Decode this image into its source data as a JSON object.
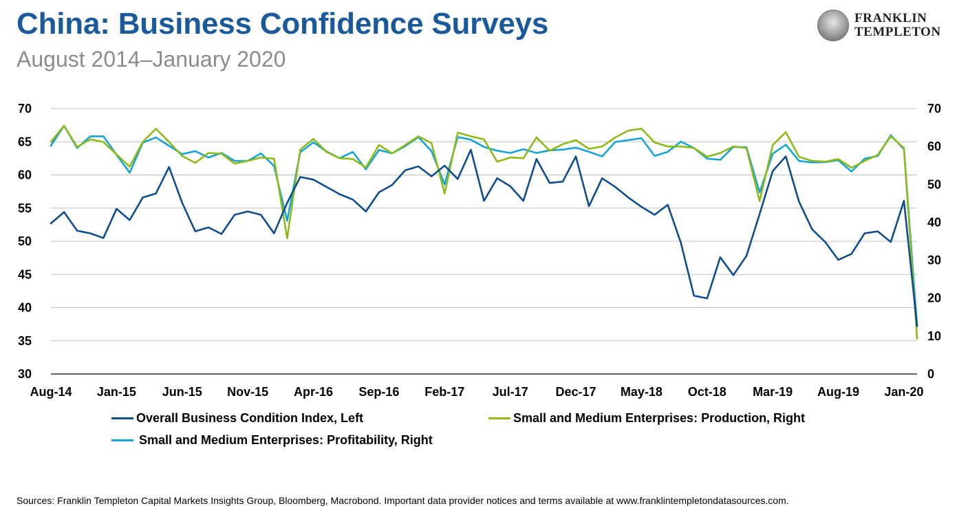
{
  "header": {
    "title": "China: Business Confidence Surveys",
    "subtitle": "August 2014–January 2020"
  },
  "logo": {
    "line1": "FRANKLIN",
    "line2": "TEMPLETON"
  },
  "footer": {
    "source": "Sources: Franklin Templeton Capital Markets Insights Group, Bloomberg, Macrobond. Important data provider notices and terms available at www.franklintempletondatasources.com."
  },
  "colors": {
    "title": "#1a5a9a",
    "subtitle": "#8c8c8c",
    "grid": "#bfbfbf"
  },
  "chart_data": {
    "type": "line",
    "left_axis": {
      "ylim": [
        30,
        70
      ],
      "ticks": [
        "30",
        "35",
        "40",
        "45",
        "50",
        "55",
        "60",
        "65",
        "70"
      ]
    },
    "right_axis": {
      "ylim": [
        0,
        70
      ],
      "ticks": [
        "0",
        "10",
        "20",
        "30",
        "40",
        "50",
        "60",
        "70"
      ]
    },
    "x_ticks": [
      {
        "label": "Aug-14",
        "index": 0
      },
      {
        "label": "Jan-15",
        "index": 5
      },
      {
        "label": "Jun-15",
        "index": 10
      },
      {
        "label": "Nov-15",
        "index": 15
      },
      {
        "label": "Apr-16",
        "index": 20
      },
      {
        "label": "Sep-16",
        "index": 25
      },
      {
        "label": "Feb-17",
        "index": 30
      },
      {
        "label": "Jul-17",
        "index": 35
      },
      {
        "label": "Dec-17",
        "index": 40
      },
      {
        "label": "May-18",
        "index": 45
      },
      {
        "label": "Oct-18",
        "index": 50
      },
      {
        "label": "Mar-19",
        "index": 55
      },
      {
        "label": "Aug-19",
        "index": 60
      },
      {
        "label": "Jan-20",
        "index": 65
      }
    ],
    "grid": true,
    "legend_position": "bottom",
    "series": [
      {
        "name": "Overall Business Condition Index, Left",
        "axis": "left",
        "color": "#0e4c8c",
        "values": [
          52.7,
          54.4,
          51.6,
          51.2,
          50.5,
          54.9,
          53.2,
          56.6,
          57.2,
          61.2,
          55.8,
          51.5,
          52.1,
          51.1,
          54.0,
          54.5,
          54.0,
          51.2,
          55.8,
          59.7,
          59.3,
          58.2,
          57.1,
          56.3,
          54.5,
          57.4,
          58.5,
          60.7,
          61.3,
          59.8,
          61.4,
          59.4,
          63.8,
          56.1,
          59.5,
          58.3,
          56.1,
          62.4,
          58.8,
          59.0,
          62.8,
          55.3,
          59.5,
          58.2,
          56.6,
          55.2,
          54.0,
          55.5,
          49.8,
          41.8,
          41.4,
          47.6,
          44.9,
          47.8,
          54.1,
          60.6,
          62.8,
          56.0,
          51.8,
          49.9,
          47.2,
          48.1,
          51.2,
          51.5,
          49.9,
          56.1,
          37.2
        ]
      },
      {
        "name": "Small and Medium Enterprises: Production, Right",
        "axis": "right",
        "color": "#8cba1a",
        "values": [
          61.2,
          65.5,
          59.9,
          61.9,
          61.2,
          57.9,
          54.7,
          61.2,
          64.7,
          61.2,
          57.5,
          55.7,
          58.3,
          58.1,
          55.5,
          56.2,
          57.1,
          56.8,
          35.8,
          59.2,
          62.0,
          58.6,
          56.9,
          56.7,
          54.5,
          60.4,
          58.2,
          60.4,
          62.7,
          60.9,
          47.6,
          63.7,
          62.7,
          61.9,
          56.0,
          57.1,
          56.9,
          62.4,
          58.9,
          60.6,
          61.7,
          59.4,
          60.0,
          62.4,
          64.2,
          64.7,
          61.1,
          60.0,
          60.0,
          59.6,
          57.3,
          58.3,
          60.0,
          59.6,
          45.6,
          60.4,
          63.8,
          57.3,
          56.2,
          56.0,
          56.7,
          54.4,
          56.2,
          57.8,
          62.7,
          59.6,
          9.3
        ]
      },
      {
        "name": "Small and Medium Enterprises: Profitability, Right",
        "axis": "right",
        "color": "#17a3d6",
        "values": [
          60.2,
          65.5,
          59.6,
          62.7,
          62.7,
          57.8,
          53.1,
          61.0,
          62.4,
          60.2,
          58.0,
          58.8,
          57.1,
          58.3,
          56.2,
          56.2,
          58.2,
          54.9,
          40.4,
          58.5,
          61.1,
          58.7,
          56.9,
          58.6,
          54.0,
          59.1,
          58.2,
          60.1,
          62.5,
          58.8,
          50.0,
          62.5,
          61.8,
          59.9,
          58.9,
          58.3,
          59.3,
          58.3,
          59.0,
          59.2,
          59.7,
          58.6,
          57.4,
          61.2,
          61.7,
          62.2,
          57.5,
          58.6,
          61.3,
          59.6,
          56.8,
          56.5,
          59.9,
          59.8,
          47.9,
          58.1,
          60.5,
          56.2,
          55.8,
          55.9,
          56.4,
          53.4,
          56.8,
          57.5,
          63.0,
          59.3,
          12.7
        ]
      }
    ]
  }
}
